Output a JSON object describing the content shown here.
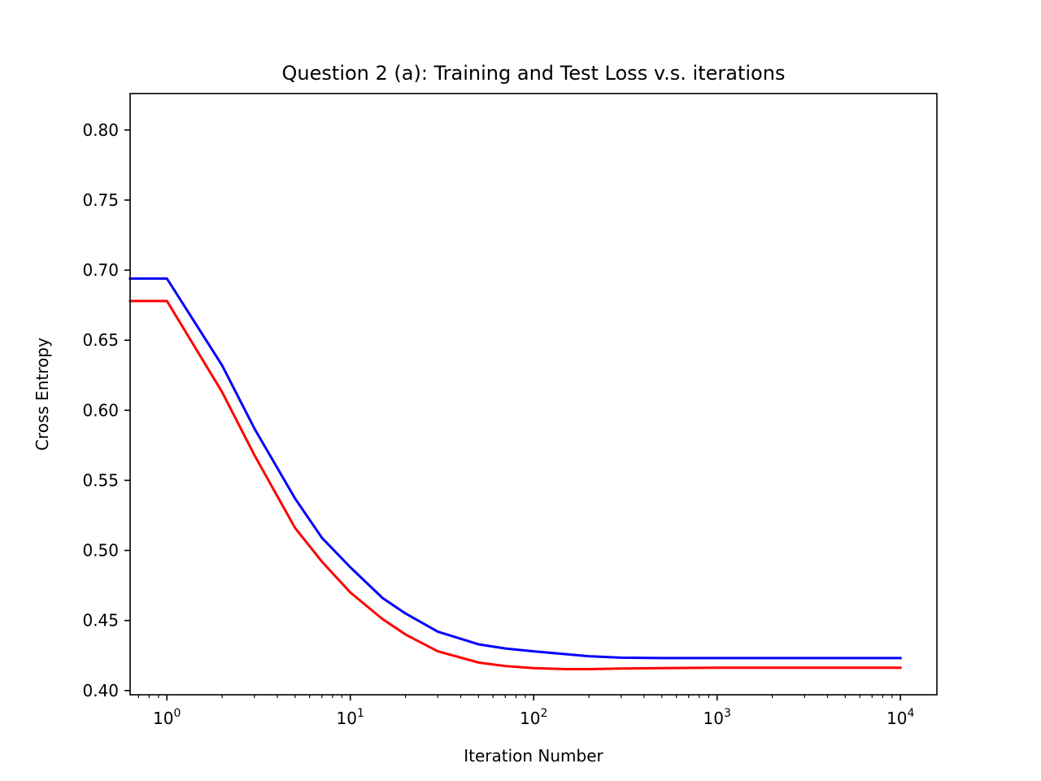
{
  "chart_data": {
    "type": "line",
    "title": "Question 2 (a): Training and Test Loss v.s. iterations",
    "xlabel": "Iteration Number",
    "ylabel": "Cross Entropy",
    "xscale": "log",
    "xlim": [
      0.63,
      15800
    ],
    "ylim": [
      0.397,
      0.826
    ],
    "grid": false,
    "legend": "none",
    "xticks": [
      {
        "value": 1,
        "base": "10",
        "exp": "0"
      },
      {
        "value": 10,
        "base": "10",
        "exp": "1"
      },
      {
        "value": 100,
        "base": "10",
        "exp": "2"
      },
      {
        "value": 1000,
        "base": "10",
        "exp": "3"
      },
      {
        "value": 10000,
        "base": "10",
        "exp": "4"
      }
    ],
    "yticks": [
      "0.40",
      "0.45",
      "0.50",
      "0.55",
      "0.60",
      "0.65",
      "0.70",
      "0.75",
      "0.80"
    ],
    "series": [
      {
        "color": "#0000ff",
        "x": [
          0.63,
          1,
          2,
          3,
          5,
          7,
          10,
          15,
          20,
          30,
          50,
          70,
          100,
          200,
          300,
          500,
          1000,
          3000,
          10000
        ],
        "y": [
          0.694,
          0.694,
          0.632,
          0.587,
          0.537,
          0.509,
          0.488,
          0.466,
          0.455,
          0.442,
          0.433,
          0.43,
          0.428,
          0.4245,
          0.4235,
          0.4232,
          0.4232,
          0.4232,
          0.4232
        ]
      },
      {
        "color": "#ff0000",
        "x": [
          0.63,
          1,
          2,
          3,
          5,
          7,
          10,
          15,
          20,
          30,
          50,
          70,
          100,
          150,
          200,
          300,
          500,
          1000,
          3000,
          10000
        ],
        "y": [
          0.678,
          0.678,
          0.613,
          0.568,
          0.516,
          0.492,
          0.47,
          0.451,
          0.44,
          0.428,
          0.42,
          0.4175,
          0.416,
          0.4153,
          0.4153,
          0.4157,
          0.416,
          0.4163,
          0.4163,
          0.4163
        ]
      }
    ]
  }
}
